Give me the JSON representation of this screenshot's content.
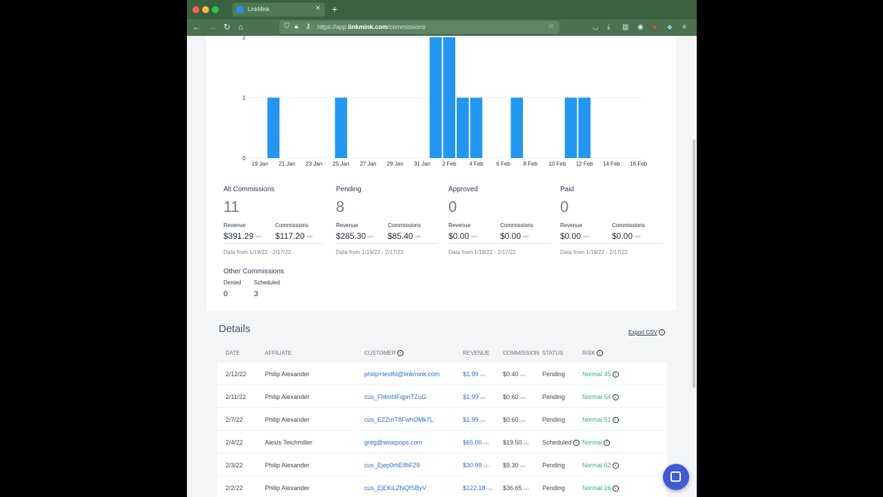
{
  "browser": {
    "tab_title": "LinkMink",
    "url_prefix": "https://app.",
    "url_domain": "linkmink.com",
    "url_path": "/commissions"
  },
  "chart_data": {
    "type": "bar",
    "y_ticks": [
      "2",
      "1",
      "0"
    ],
    "ylim": [
      0,
      2
    ],
    "x_tick_labels": [
      "19 Jan",
      "21 Jan",
      "23 Jan",
      "25 Jan",
      "27 Jan",
      "29 Jan",
      "31 Jan",
      "2 Feb",
      "4 Feb",
      "6 Feb",
      "8 Feb",
      "10 Feb",
      "12 Feb",
      "14 Feb",
      "16 Feb"
    ],
    "x": [
      "19 Jan",
      "20 Jan",
      "21 Jan",
      "22 Jan",
      "23 Jan",
      "24 Jan",
      "25 Jan",
      "26 Jan",
      "27 Jan",
      "28 Jan",
      "29 Jan",
      "30 Jan",
      "31 Jan",
      "1 Feb",
      "2 Feb",
      "3 Feb",
      "4 Feb",
      "5 Feb",
      "6 Feb",
      "7 Feb",
      "8 Feb",
      "9 Feb",
      "10 Feb",
      "11 Feb",
      "12 Feb",
      "13 Feb",
      "14 Feb",
      "15 Feb",
      "16 Feb",
      "17 Feb"
    ],
    "values": [
      0,
      1,
      0,
      0,
      0,
      0,
      1,
      0,
      0,
      0,
      0,
      0,
      0,
      2,
      2,
      1,
      1,
      0,
      0,
      1,
      0,
      0,
      0,
      1,
      1,
      0,
      0,
      0,
      0,
      0
    ],
    "bar_color": "#2196f3",
    "grid": true
  },
  "stats": [
    {
      "title": "All Commissions",
      "count": "11",
      "revenue_label": "Revenue",
      "revenue": "$391.29",
      "commissions_label": "Commissions",
      "commissions": "$117.20",
      "currency": "USD",
      "range": "Data from 1/19/22 - 2/17/22."
    },
    {
      "title": "Pending",
      "count": "8",
      "revenue_label": "Revenue",
      "revenue": "$285.30",
      "commissions_label": "Commissions",
      "commissions": "$85.40",
      "currency": "USD",
      "range": "Data from 1/19/22 - 2/17/22."
    },
    {
      "title": "Approved",
      "count": "0",
      "revenue_label": "Revenue",
      "revenue": "$0.00",
      "commissions_label": "Commissions",
      "commissions": "$0.00",
      "currency": "USD",
      "range": "Data from 1/19/22 - 2/17/22."
    },
    {
      "title": "Paid",
      "count": "0",
      "revenue_label": "Revenue",
      "revenue": "$0.00",
      "commissions_label": "Commissions",
      "commissions": "$0.00",
      "currency": "USD",
      "range": "Data from 1/19/22 - 2/17/22."
    }
  ],
  "other": {
    "title": "Other Commissions",
    "denied_label": "Denied",
    "denied": "0",
    "scheduled_label": "Scheduled",
    "scheduled": "3"
  },
  "details": {
    "title": "Details",
    "export_label": "Export CSV",
    "columns": [
      "DATE",
      "AFFILIATE",
      "CUSTOMER",
      "REVENUE",
      "COMMISSION",
      "STATUS",
      "RISK"
    ],
    "rows": [
      {
        "date": "2/12/22",
        "affiliate": "Philip Alexander",
        "customer": "philip+testfd@linkmink.com",
        "revenue": "$1.99",
        "commission": "$0.40",
        "status": "Pending",
        "risk": "Normal 45",
        "currency": "USD",
        "status_info": false
      },
      {
        "date": "2/11/22",
        "affiliate": "Philip Alexander",
        "customer": "cus_FhtmblFqpnTZuG",
        "revenue": "$1.99",
        "commission": "$0.60",
        "status": "Pending",
        "risk": "Normal 54",
        "currency": "USD",
        "status_info": false
      },
      {
        "date": "2/7/22",
        "affiliate": "Philip Alexander",
        "customer": "cus_EZZmT8FwhOMk7L",
        "revenue": "$1.99",
        "commission": "$0.60",
        "status": "Pending",
        "risk": "Normal 51",
        "currency": "USD",
        "status_info": false
      },
      {
        "date": "2/4/22",
        "affiliate": "Alexis Teichmiller",
        "customer": "greg@wisepops.com",
        "revenue": "$65.00",
        "commission": "$19.50",
        "status": "Scheduled",
        "risk": "Normal",
        "currency": "USD",
        "status_info": true
      },
      {
        "date": "2/3/22",
        "affiliate": "Philip Alexander",
        "customer": "cus_Ejep0rhEl8iF29",
        "revenue": "$30.99",
        "commission": "$9.30",
        "status": "Pending",
        "risk": "Normal 62",
        "currency": "USD",
        "status_info": false
      },
      {
        "date": "2/2/22",
        "affiliate": "Philip Alexander",
        "customer": "cus_EjEKiLZNQfSByV",
        "revenue": "$122.18",
        "commission": "$36.65",
        "status": "Pending",
        "risk": "Normal 16",
        "currency": "USD",
        "status_info": false
      }
    ]
  },
  "colors": {
    "accent": "#2196f3",
    "link": "#2a6ed1",
    "risk_normal": "#2fb380",
    "titlebar": "#3b6240",
    "chat_button": "#3f5bd8"
  }
}
